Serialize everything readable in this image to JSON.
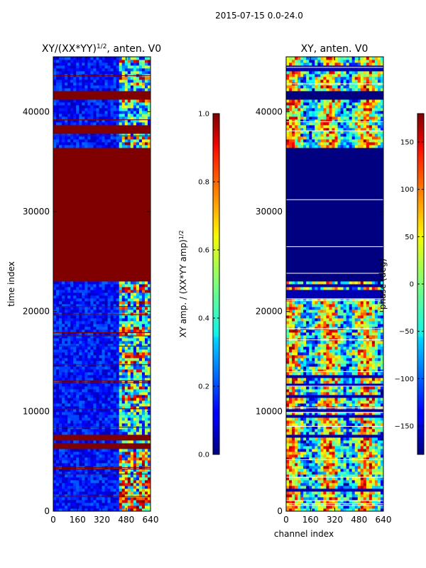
{
  "suptitle": "2015-07-15 0.0-24.0",
  "chart_data": [
    {
      "type": "heatmap",
      "title": "XY/(XX*YY)",
      "title_sup": "1/2",
      "title_rest": ", anten. V0",
      "xlabel": "",
      "ylabel": "time index",
      "xlim": [
        0,
        640
      ],
      "ylim": [
        0,
        45500
      ],
      "xticks": [
        "0",
        "160",
        "320",
        "480",
        "640"
      ],
      "xtick_values": [
        0,
        160,
        320,
        480,
        640
      ],
      "yticks": [
        "0",
        "10000",
        "20000",
        "30000",
        "40000"
      ],
      "ytick_values": [
        0,
        10000,
        20000,
        30000,
        40000
      ],
      "colormap": "jet",
      "colorbar": {
        "label": "XY amp. / (XX*YY amp)",
        "label_sup": "1/2",
        "range": [
          0.0,
          1.0
        ],
        "ticks": [
          "0.0",
          "0.2",
          "0.4",
          "0.6",
          "0.8",
          "1.0"
        ],
        "tick_values": [
          0.0,
          0.2,
          0.4,
          0.6,
          0.8,
          1.0
        ]
      },
      "saturated_time_bands": [
        [
          23000,
          36500
        ],
        [
          37900,
          38600
        ],
        [
          41200,
          42000
        ],
        [
          6300,
          6800
        ],
        [
          7200,
          7700
        ]
      ],
      "active_channel_band": [
        430,
        640
      ]
    },
    {
      "type": "heatmap",
      "title": "XY, anten. V0",
      "xlabel": "channel index",
      "ylabel": "",
      "xlim": [
        0,
        640
      ],
      "ylim": [
        0,
        45500
      ],
      "xticks": [
        "0",
        "160",
        "320",
        "480",
        "640"
      ],
      "xtick_values": [
        0,
        160,
        320,
        480,
        640
      ],
      "yticks": [
        "0",
        "10000",
        "20000",
        "30000",
        "40000"
      ],
      "ytick_values": [
        0,
        10000,
        20000,
        30000,
        40000
      ],
      "colormap": "jet",
      "colorbar": {
        "label": "phase (deg)",
        "range": [
          -180,
          180
        ],
        "ticks": [
          "−150",
          "−100",
          "−50",
          "0",
          "50",
          "100",
          "150"
        ],
        "tick_values": [
          -150,
          -100,
          -50,
          0,
          50,
          100,
          150
        ]
      },
      "blank_time_bands": [
        [
          23000,
          36400
        ],
        [
          41300,
          42200
        ]
      ]
    }
  ]
}
